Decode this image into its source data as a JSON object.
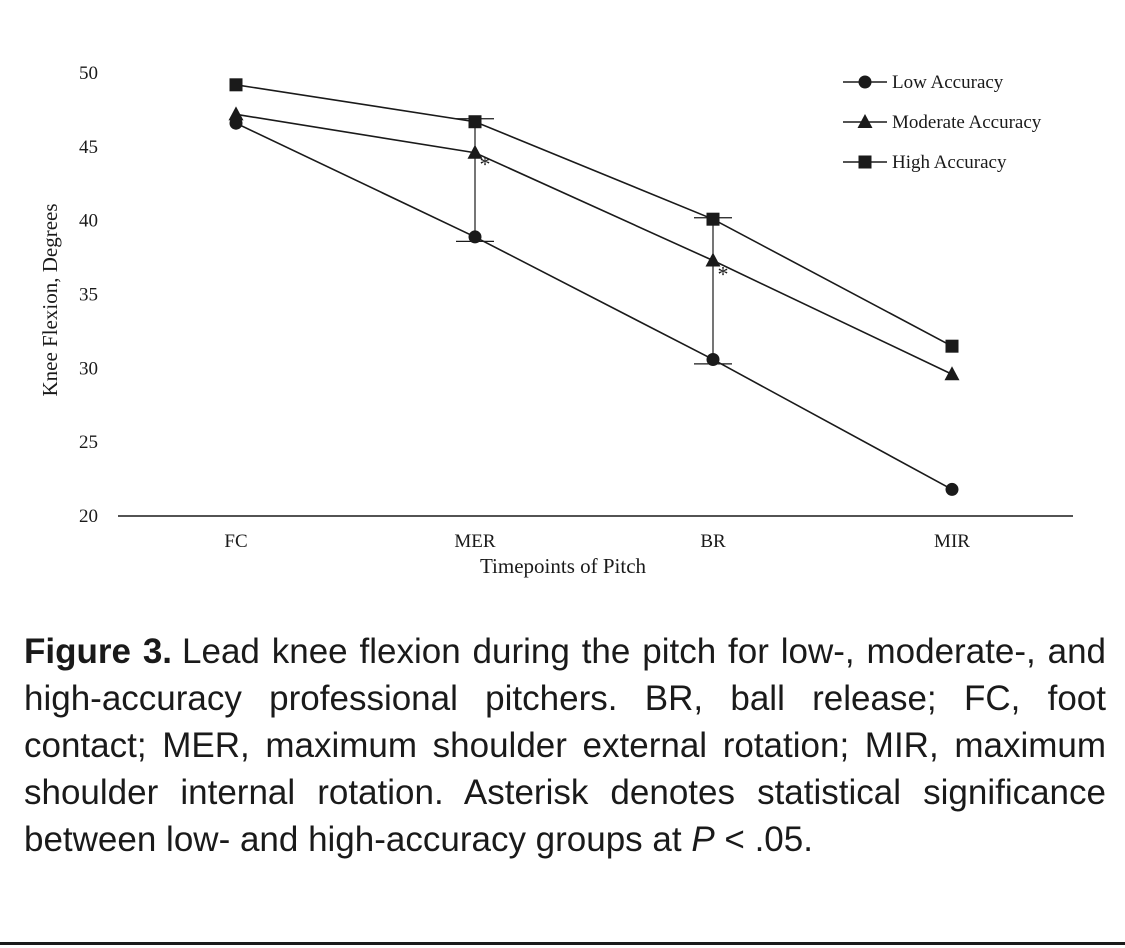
{
  "chart_data": {
    "type": "line",
    "categories": [
      "FC",
      "MER",
      "BR",
      "MIR"
    ],
    "series": [
      {
        "name": "Low Accuracy",
        "marker": "circle",
        "values": [
          46.6,
          38.9,
          30.6,
          21.8
        ]
      },
      {
        "name": "Moderate Accuracy",
        "marker": "triangle",
        "values": [
          47.2,
          44.6,
          37.3,
          29.6
        ]
      },
      {
        "name": "High Accuracy",
        "marker": "square",
        "values": [
          49.2,
          46.7,
          40.1,
          31.5
        ]
      }
    ],
    "error_bars": {
      "Low Accuracy": [
        0,
        0.3,
        0.3,
        0
      ],
      "High Accuracy": [
        0,
        0.2,
        0.1,
        0
      ]
    },
    "significance": [
      {
        "category": "MER",
        "between": [
          "Low Accuracy",
          "High Accuracy"
        ],
        "mark": "*"
      },
      {
        "category": "BR",
        "between": [
          "Low Accuracy",
          "High Accuracy"
        ],
        "mark": "*"
      }
    ],
    "title": "",
    "xlabel": "Timepoints of Pitch",
    "ylabel": "Knee Flexion, Degrees",
    "ylim": [
      20,
      50
    ],
    "yticks": [
      20,
      25,
      30,
      35,
      40,
      45,
      50
    ],
    "grid": false,
    "legend_position": "top-right",
    "line_color": "#1a1a1a"
  },
  "caption": {
    "figure_label": "Figure 3.",
    "text_main": "Lead knee flexion during the pitch for low-, moderate-, and high-accuracy professional pitchers. BR, ball release; FC, foot contact; MER, maximum shoulder external rotation; MIR, maximum shoulder internal rotation. Asterisk denotes statistical significance between low- and high-accuracy groups at ",
    "p_symbol": "P",
    "text_end": " < .05."
  }
}
